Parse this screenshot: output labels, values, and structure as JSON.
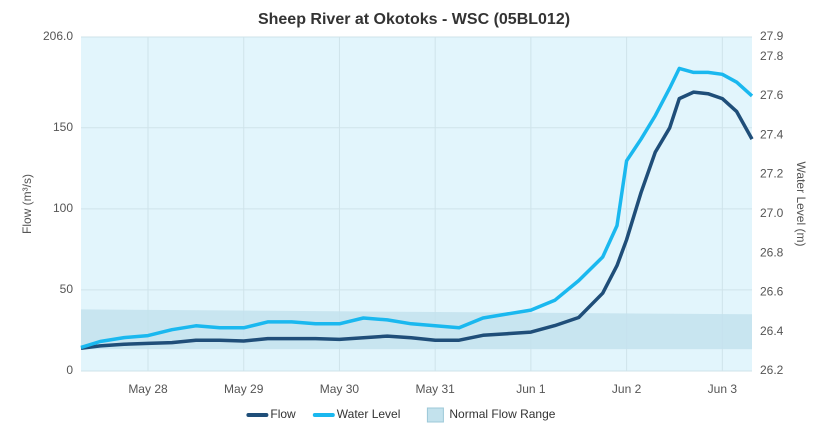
{
  "chart_data": {
    "type": "line",
    "title": "Sheep River at Okotoks - WSC (05BL012)",
    "y_label": "Flow (m³/s)",
    "y2_label": "Water Level (m)",
    "x": [
      -0.7,
      -0.5,
      -0.25,
      0,
      0.25,
      0.5,
      0.75,
      1,
      1.25,
      1.5,
      1.75,
      2,
      2.25,
      2.5,
      2.75,
      3,
      3.25,
      3.5,
      3.75,
      4,
      4.25,
      4.5,
      4.75,
      4.9,
      5,
      5.15,
      5.3,
      5.45,
      5.55,
      5.7,
      5.85,
      6,
      6.15,
      6.31
    ],
    "xlim": [
      -0.7,
      6.31
    ],
    "xticks": [
      {
        "value": 0,
        "label": "May 28"
      },
      {
        "value": 1,
        "label": "May 29"
      },
      {
        "value": 2,
        "label": "May 30"
      },
      {
        "value": 3,
        "label": "May 31"
      },
      {
        "value": 4,
        "label": "Jun 1"
      },
      {
        "value": 5,
        "label": "Jun 2"
      },
      {
        "value": 6,
        "label": "Jun 3"
      }
    ],
    "ylim": [
      0,
      206
    ],
    "yticks": [
      0,
      50,
      100,
      150,
      {
        "value": 206,
        "label": "206.0"
      }
    ],
    "y2lim": [
      26.2,
      27.9
    ],
    "y2ticks": [
      26.2,
      26.4,
      26.6,
      26.8,
      {
        "value": 27,
        "label": "27.0"
      },
      27.2,
      27.4,
      27.6,
      27.8,
      27.9
    ],
    "grid": true,
    "series": [
      {
        "name": "Flow",
        "color": "#1f4e79",
        "values": [
          14,
          15.5,
          16.5,
          17,
          17.5,
          19,
          19,
          18.5,
          20,
          20,
          20,
          19.5,
          20.5,
          21.5,
          20.5,
          19,
          19,
          22,
          23,
          24,
          28,
          33,
          48,
          65,
          81,
          110,
          135,
          150,
          168,
          172,
          171,
          168,
          160,
          143
        ]
      },
      {
        "name": "Water Level",
        "color": "#1ab8ef",
        "axis": "y2",
        "values": [
          26.32,
          26.35,
          26.37,
          26.38,
          26.41,
          26.43,
          26.42,
          26.42,
          26.45,
          26.45,
          26.44,
          26.44,
          26.47,
          26.46,
          26.44,
          26.43,
          26.42,
          26.47,
          26.49,
          26.51,
          26.56,
          26.66,
          26.78,
          26.94,
          27.27,
          27.38,
          27.5,
          27.64,
          27.74,
          27.72,
          27.72,
          27.71,
          27.67,
          27.6
        ]
      },
      {
        "name": "Normal Flow Range",
        "color": "#c3e2ed",
        "x": [
          -0.7,
          6.31
        ],
        "lower": [
          13.5,
          13.5
        ],
        "upper": [
          38,
          35
        ]
      }
    ]
  }
}
